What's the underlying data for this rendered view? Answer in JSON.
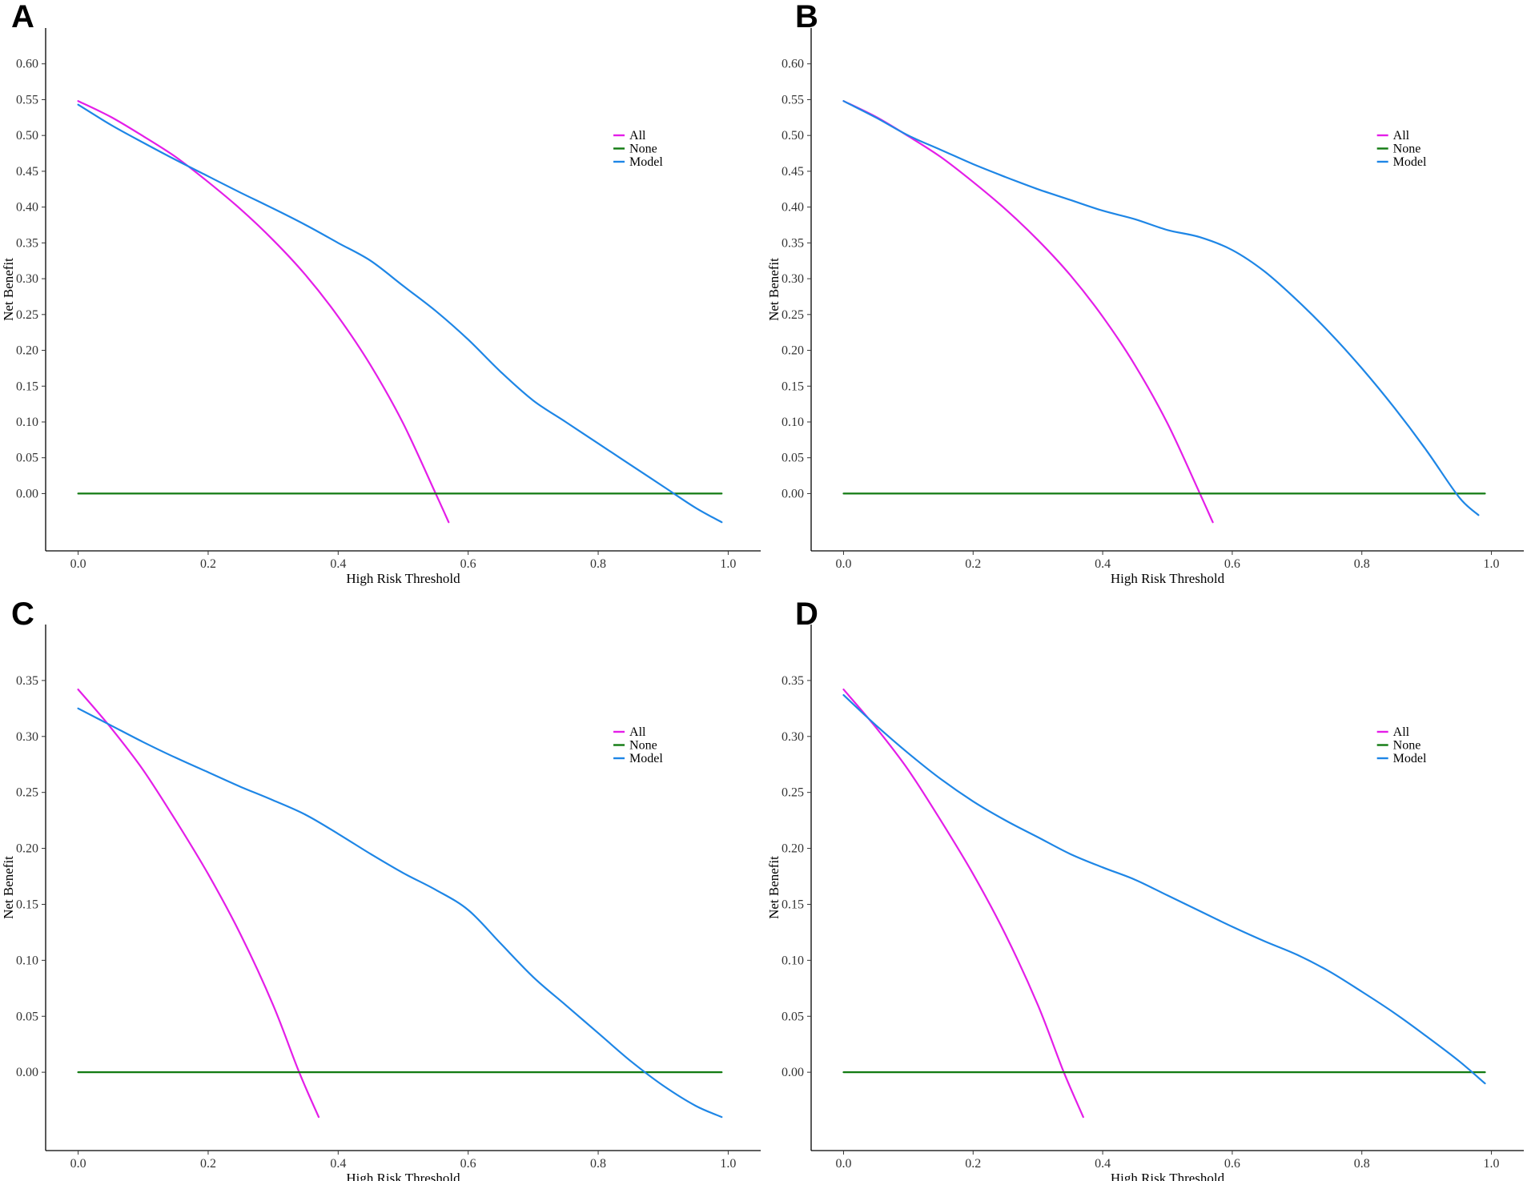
{
  "colors": {
    "all": "#e41ee8",
    "none": "#117a11",
    "model": "#1e86e6"
  },
  "chart_data": [
    {
      "panel": "A",
      "type": "line",
      "xlabel": "High Risk Threshold",
      "ylabel": "Net Benefit",
      "xlim": [
        -0.05,
        1.05
      ],
      "ylim": [
        -0.08,
        0.65
      ],
      "xticks": [
        "0.0",
        "0.2",
        "0.4",
        "0.6",
        "0.8",
        "1.0"
      ],
      "yticks": [
        "0.00",
        "0.05",
        "0.10",
        "0.15",
        "0.20",
        "0.25",
        "0.30",
        "0.35",
        "0.40",
        "0.45",
        "0.50",
        "0.55",
        "0.60"
      ],
      "legend": [
        "All",
        "None",
        "Model"
      ],
      "legend_position": "top-right",
      "series": [
        {
          "name": "All",
          "x": [
            0,
            0.05,
            0.1,
            0.15,
            0.2,
            0.25,
            0.3,
            0.35,
            0.4,
            0.45,
            0.5,
            0.55,
            0.57
          ],
          "y": [
            0.548,
            0.526,
            0.499,
            0.47,
            0.435,
            0.397,
            0.354,
            0.305,
            0.247,
            0.179,
            0.098,
            0.0,
            -0.04
          ]
        },
        {
          "name": "None",
          "x": [
            0,
            0.99
          ],
          "y": [
            0,
            0
          ]
        },
        {
          "name": "Model",
          "x": [
            0,
            0.05,
            0.1,
            0.15,
            0.2,
            0.25,
            0.3,
            0.35,
            0.4,
            0.45,
            0.5,
            0.55,
            0.6,
            0.65,
            0.7,
            0.75,
            0.8,
            0.85,
            0.9,
            0.95,
            0.99
          ],
          "y": [
            0.543,
            0.515,
            0.49,
            0.466,
            0.443,
            0.42,
            0.398,
            0.375,
            0.35,
            0.325,
            0.29,
            0.255,
            0.215,
            0.17,
            0.13,
            0.1,
            0.07,
            0.04,
            0.01,
            -0.02,
            -0.04
          ]
        }
      ]
    },
    {
      "panel": "B",
      "type": "line",
      "xlabel": "High Risk Threshold",
      "ylabel": "Net Benefit",
      "xlim": [
        -0.05,
        1.05
      ],
      "ylim": [
        -0.08,
        0.65
      ],
      "xticks": [
        "0.0",
        "0.2",
        "0.4",
        "0.6",
        "0.8",
        "1.0"
      ],
      "yticks": [
        "0.00",
        "0.05",
        "0.10",
        "0.15",
        "0.20",
        "0.25",
        "0.30",
        "0.35",
        "0.40",
        "0.45",
        "0.50",
        "0.55",
        "0.60"
      ],
      "legend": [
        "All",
        "None",
        "Model"
      ],
      "legend_position": "top-right",
      "series": [
        {
          "name": "All",
          "x": [
            0,
            0.05,
            0.1,
            0.15,
            0.2,
            0.25,
            0.3,
            0.35,
            0.4,
            0.45,
            0.5,
            0.55,
            0.57
          ],
          "y": [
            0.548,
            0.526,
            0.499,
            0.47,
            0.435,
            0.397,
            0.354,
            0.305,
            0.247,
            0.179,
            0.098,
            0.0,
            -0.04
          ]
        },
        {
          "name": "None",
          "x": [
            0,
            0.99
          ],
          "y": [
            0,
            0
          ]
        },
        {
          "name": "Model",
          "x": [
            0,
            0.05,
            0.1,
            0.15,
            0.2,
            0.25,
            0.3,
            0.35,
            0.4,
            0.45,
            0.5,
            0.55,
            0.6,
            0.65,
            0.7,
            0.75,
            0.8,
            0.85,
            0.9,
            0.95,
            0.98
          ],
          "y": [
            0.548,
            0.525,
            0.5,
            0.48,
            0.46,
            0.442,
            0.425,
            0.41,
            0.395,
            0.383,
            0.368,
            0.358,
            0.34,
            0.31,
            0.27,
            0.225,
            0.175,
            0.12,
            0.06,
            -0.005,
            -0.03
          ]
        }
      ]
    },
    {
      "panel": "C",
      "type": "line",
      "xlabel": "High Risk Threshold",
      "ylabel": "Net Benefit",
      "xlim": [
        -0.05,
        1.05
      ],
      "ylim": [
        -0.07,
        0.4
      ],
      "xticks": [
        "0.0",
        "0.2",
        "0.4",
        "0.6",
        "0.8",
        "1.0"
      ],
      "yticks": [
        "0.00",
        "0.05",
        "0.10",
        "0.15",
        "0.20",
        "0.25",
        "0.30",
        "0.35"
      ],
      "legend": [
        "All",
        "None",
        "Model"
      ],
      "legend_position": "top-right",
      "series": [
        {
          "name": "All",
          "x": [
            0,
            0.05,
            0.1,
            0.15,
            0.2,
            0.25,
            0.3,
            0.34,
            0.37
          ],
          "y": [
            0.342,
            0.308,
            0.27,
            0.225,
            0.177,
            0.123,
            0.06,
            0.0,
            -0.04
          ]
        },
        {
          "name": "None",
          "x": [
            0,
            0.99
          ],
          "y": [
            0,
            0
          ]
        },
        {
          "name": "Model",
          "x": [
            0,
            0.05,
            0.1,
            0.15,
            0.2,
            0.25,
            0.3,
            0.35,
            0.4,
            0.45,
            0.5,
            0.55,
            0.6,
            0.65,
            0.7,
            0.75,
            0.8,
            0.85,
            0.9,
            0.95,
            0.99
          ],
          "y": [
            0.325,
            0.31,
            0.295,
            0.281,
            0.268,
            0.255,
            0.243,
            0.23,
            0.213,
            0.195,
            0.178,
            0.163,
            0.145,
            0.115,
            0.085,
            0.06,
            0.035,
            0.01,
            -0.012,
            -0.03,
            -0.04
          ]
        }
      ]
    },
    {
      "panel": "D",
      "type": "line",
      "xlabel": "High Risk Threshold",
      "ylabel": "Net Benefit",
      "xlim": [
        -0.05,
        1.05
      ],
      "ylim": [
        -0.07,
        0.4
      ],
      "xticks": [
        "0.0",
        "0.2",
        "0.4",
        "0.6",
        "0.8",
        "1.0"
      ],
      "yticks": [
        "0.00",
        "0.05",
        "0.10",
        "0.15",
        "0.20",
        "0.25",
        "0.30",
        "0.35"
      ],
      "legend": [
        "All",
        "None",
        "Model"
      ],
      "legend_position": "top-right",
      "series": [
        {
          "name": "All",
          "x": [
            0,
            0.05,
            0.1,
            0.15,
            0.2,
            0.25,
            0.3,
            0.34,
            0.37
          ],
          "y": [
            0.342,
            0.308,
            0.27,
            0.225,
            0.177,
            0.123,
            0.06,
            0.0,
            -0.04
          ]
        },
        {
          "name": "None",
          "x": [
            0,
            0.99
          ],
          "y": [
            0,
            0
          ]
        },
        {
          "name": "Model",
          "x": [
            0,
            0.05,
            0.1,
            0.15,
            0.2,
            0.25,
            0.3,
            0.35,
            0.4,
            0.45,
            0.5,
            0.55,
            0.6,
            0.65,
            0.7,
            0.75,
            0.8,
            0.85,
            0.9,
            0.95,
            0.99
          ],
          "y": [
            0.337,
            0.31,
            0.285,
            0.262,
            0.242,
            0.225,
            0.21,
            0.195,
            0.183,
            0.172,
            0.158,
            0.144,
            0.13,
            0.117,
            0.105,
            0.09,
            0.072,
            0.053,
            0.032,
            0.01,
            -0.01
          ]
        }
      ]
    }
  ]
}
